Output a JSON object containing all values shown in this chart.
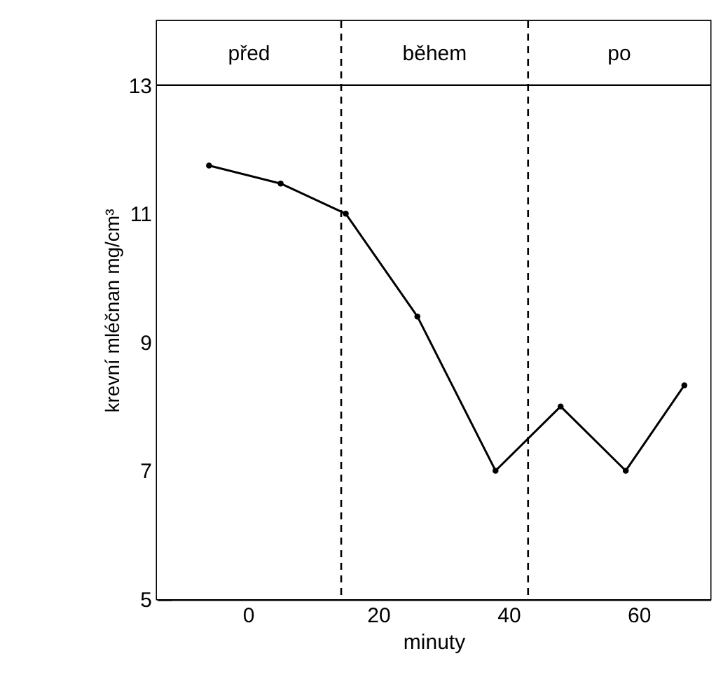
{
  "chart_data": {
    "type": "line",
    "xlabel": "minuty",
    "ylabel": "krevní mléčnan mg/cm³",
    "x": [
      -6,
      5,
      15,
      26,
      38,
      48,
      58,
      67
    ],
    "series": [
      {
        "color": "#000000",
        "values": [
          11.75,
          11.47,
          11.0,
          9.4,
          7.0,
          8.0,
          7.0,
          8.33
        ]
      }
    ],
    "xlim": [
      -14,
      71
    ],
    "xticks": [
      0,
      20,
      40,
      60
    ],
    "ylim": [
      5,
      14
    ],
    "yticks": [
      5,
      7,
      9,
      11,
      13
    ],
    "ref_lines": [
      {
        "axis": "x",
        "value": 14.3,
        "line_style": "dashed",
        "color": "#000000"
      },
      {
        "axis": "x",
        "value": 43,
        "line_style": "dashed",
        "color": "#000000"
      },
      {
        "axis": "y",
        "value": 13,
        "line_style": "solid",
        "color": "#000000"
      }
    ],
    "bands": [
      {
        "axis": "x",
        "from": -14,
        "to": 14.3,
        "label": "před",
        "color": "#ffffff"
      },
      {
        "axis": "x",
        "from": 14.3,
        "to": 43,
        "label": "během",
        "color": "#ffffff"
      },
      {
        "axis": "x",
        "from": 43,
        "to": 71,
        "label": "po",
        "color": "#ffffff"
      }
    ],
    "grid": false,
    "marker": "circle",
    "line_style": "solid"
  }
}
